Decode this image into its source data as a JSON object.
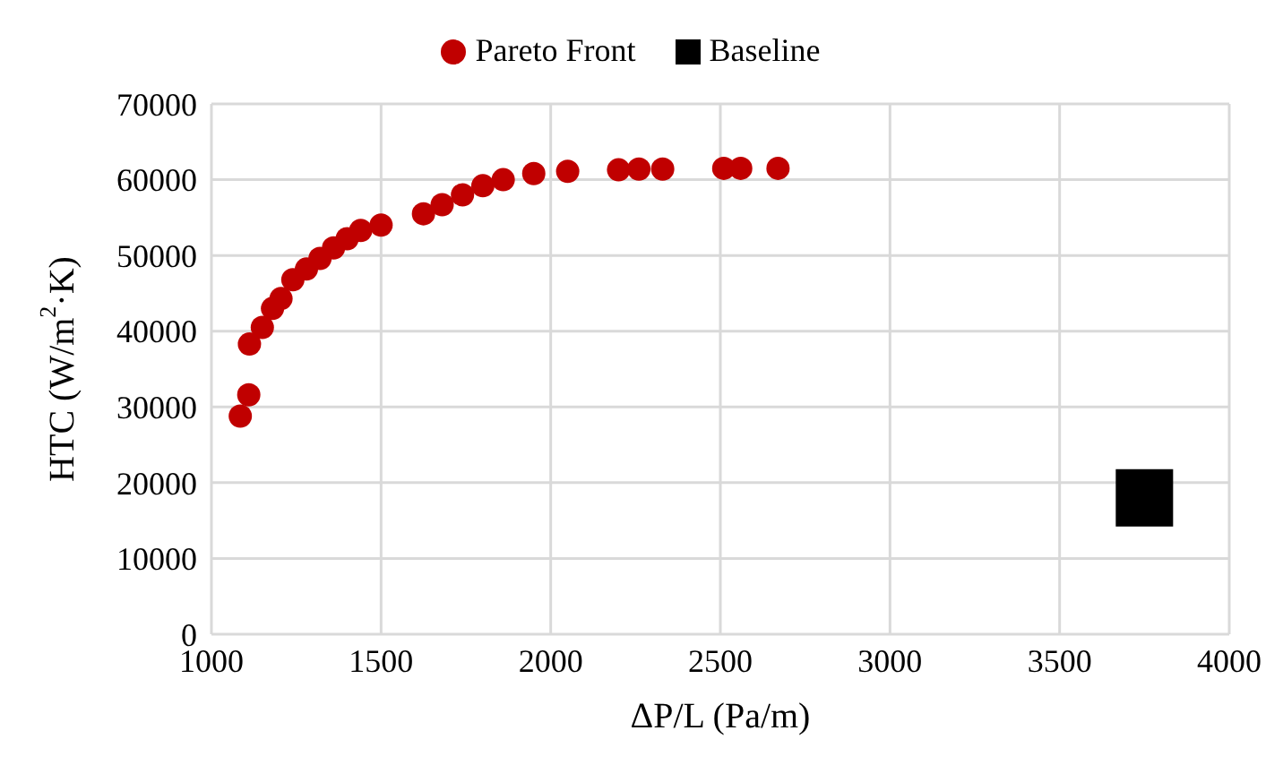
{
  "chart_data": {
    "type": "scatter",
    "xlabel": "ΔP/L (Pa/m)",
    "ylabel": "HTC (W/m$^{2}$·K)",
    "xlim": [
      1000,
      4000
    ],
    "xticks": [
      1000,
      1500,
      2000,
      2500,
      3000,
      3500,
      4000
    ],
    "ylim": [
      0,
      70000
    ],
    "yticks": [
      0,
      10000,
      20000,
      30000,
      40000,
      50000,
      60000,
      70000
    ],
    "grid": true,
    "legend": "top",
    "series": [
      {
        "name": "Pareto Front",
        "color": "#c00000",
        "marker": "circle",
        "x": [
          1085,
          1110,
          1112,
          1150,
          1180,
          1205,
          1240,
          1280,
          1320,
          1360,
          1400,
          1440,
          1500,
          1625,
          1680,
          1740,
          1800,
          1860,
          1950,
          2050,
          2200,
          2260,
          2330,
          2510,
          2560,
          2670
        ],
        "values": [
          28800,
          31600,
          38300,
          40500,
          43000,
          44300,
          46800,
          48200,
          49600,
          51000,
          52200,
          53300,
          54000,
          55500,
          56700,
          58000,
          59200,
          60000,
          60800,
          61100,
          61300,
          61400,
          61400,
          61500,
          61500,
          61500
        ]
      },
      {
        "name": "Baseline",
        "color": "#000000",
        "marker": "square",
        "x": [
          3750
        ],
        "values": [
          18000
        ]
      }
    ]
  }
}
